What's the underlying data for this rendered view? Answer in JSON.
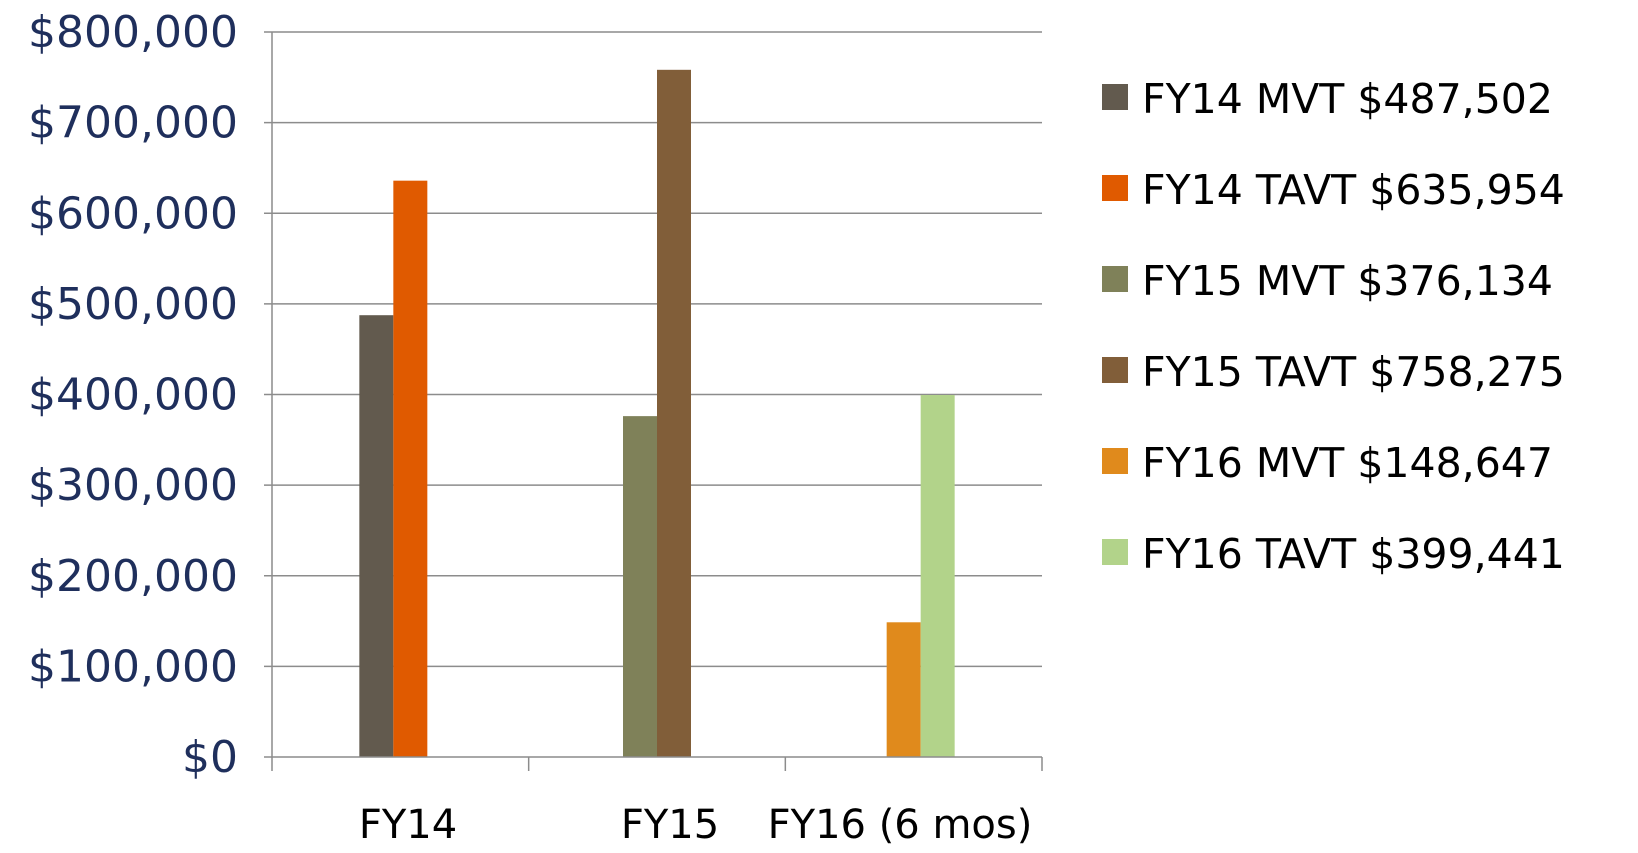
{
  "chart_data": {
    "type": "bar",
    "categories": [
      "FY14",
      "FY15",
      "FY16 (6 mos)"
    ],
    "series": [
      {
        "name": "FY14 MVT $487,502",
        "category": "FY14",
        "value": 487502,
        "color": "#625a4e"
      },
      {
        "name": "FY14 TAVT $635,954",
        "category": "FY14",
        "value": 635954,
        "color": "#e05a00"
      },
      {
        "name": "FY15 MVT $376,134",
        "category": "FY15",
        "value": 376134,
        "color": "#7f8159"
      },
      {
        "name": "FY15 TAVT $758,275",
        "category": "FY15",
        "value": 758275,
        "color": "#815e39"
      },
      {
        "name": "FY16 MVT $148,647",
        "category": "FY16 (6 mos)",
        "value": 148647,
        "color": "#e08a1c"
      },
      {
        "name": "FY16 TAVT $399,441",
        "category": "FY16 (6 mos)",
        "value": 399441,
        "color": "#b2d38a"
      }
    ],
    "y_ticks": [
      "$0",
      "$100,000",
      "$200,000",
      "$300,000",
      "$400,000",
      "$500,000",
      "$600,000",
      "$700,000",
      "$800,000"
    ],
    "ylim": [
      0,
      800000
    ],
    "grid": true,
    "legend_position": "right"
  }
}
